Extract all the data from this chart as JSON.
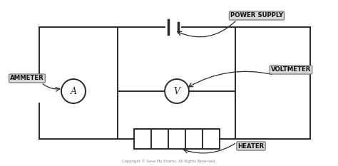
{
  "bg_color": "#ffffff",
  "line_color": "#2a2a2a",
  "label_bg": "#d8d8d8",
  "label_text_color": "#111111",
  "fig_width": 4.74,
  "fig_height": 2.33,
  "dpi": 100,
  "labels": {
    "power_supply": "POWER SUPPLY",
    "ammeter": "AMMETER",
    "voltmeter": "VOLTMETER",
    "heater": "HEATER"
  },
  "copyright": "Copyright © Save My Exams. All Rights Reserved."
}
